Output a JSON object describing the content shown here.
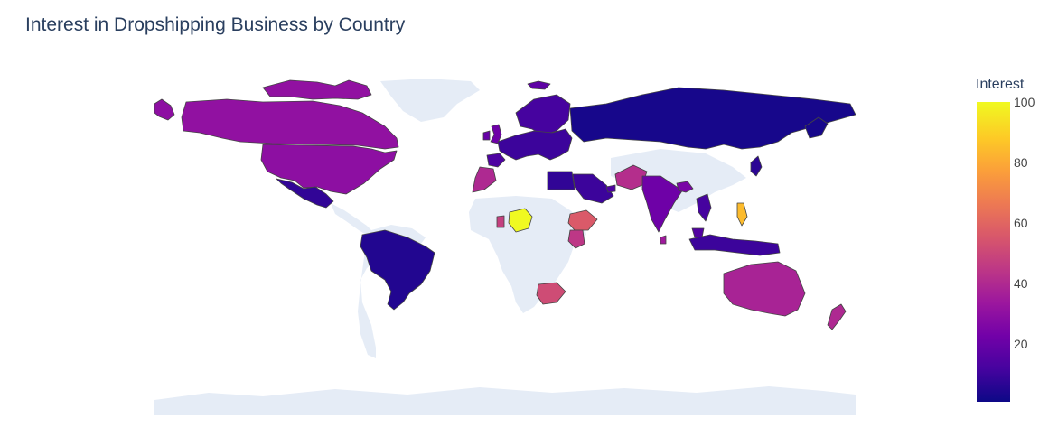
{
  "chart_data": {
    "type": "choropleth",
    "title": "Interest in Dropshipping Business by Country",
    "colorbar": {
      "title": "Interest",
      "ticks": [
        "100",
        "80",
        "60",
        "40",
        "20"
      ],
      "tick_values": [
        100,
        80,
        60,
        40,
        20
      ],
      "range": [
        1,
        100
      ],
      "colorscale": "Plasma"
    },
    "colors": {
      "land": "#e5ecf6",
      "border": "#444444"
    },
    "regions": [
      {
        "name": "Alaska (United States)",
        "value": 30
      },
      {
        "name": "Canada",
        "value": 31
      },
      {
        "name": "Canadian Arctic Islands",
        "value": 31
      },
      {
        "name": "Greenland",
        "value": null
      },
      {
        "name": "United States",
        "value": 30
      },
      {
        "name": "Mexico",
        "value": 8
      },
      {
        "name": "Central America",
        "value": null
      },
      {
        "name": "Brazil",
        "value": 5
      },
      {
        "name": "South America (other)",
        "value": null
      },
      {
        "name": "Iceland",
        "value": 18
      },
      {
        "name": "United Kingdom",
        "value": 22
      },
      {
        "name": "Ireland",
        "value": 20
      },
      {
        "name": "Scandinavia",
        "value": 12
      },
      {
        "name": "Europe",
        "value": 10
      },
      {
        "name": "Spain",
        "value": 14
      },
      {
        "name": "Russia",
        "value": 3
      },
      {
        "name": "Sakhalin (Russia)",
        "value": 3
      },
      {
        "name": "Japan",
        "value": 7
      },
      {
        "name": "Morocco",
        "value": 40
      },
      {
        "name": "Africa (other)",
        "value": null
      },
      {
        "name": "Nigeria",
        "value": 100
      },
      {
        "name": "Ghana",
        "value": 48
      },
      {
        "name": "Egypt",
        "value": 8
      },
      {
        "name": "Saudi Arabia",
        "value": 10
      },
      {
        "name": "United Arab Emirates",
        "value": 14
      },
      {
        "name": "Pakistan",
        "value": 42
      },
      {
        "name": "India",
        "value": 22
      },
      {
        "name": "Sri Lanka",
        "value": 35
      },
      {
        "name": "Bangladesh",
        "value": 25
      },
      {
        "name": "Ethiopia",
        "value": 57
      },
      {
        "name": "Kenya",
        "value": 45
      },
      {
        "name": "South Africa",
        "value": 52
      },
      {
        "name": "Asia (other)",
        "value": null
      },
      {
        "name": "Vietnam",
        "value": 12
      },
      {
        "name": "Malaysia",
        "value": 15
      },
      {
        "name": "Philippines",
        "value": 85
      },
      {
        "name": "Indonesia",
        "value": 10
      },
      {
        "name": "Australia",
        "value": 38
      },
      {
        "name": "New Zealand",
        "value": 40
      },
      {
        "name": "Antarctica",
        "value": null
      }
    ]
  }
}
